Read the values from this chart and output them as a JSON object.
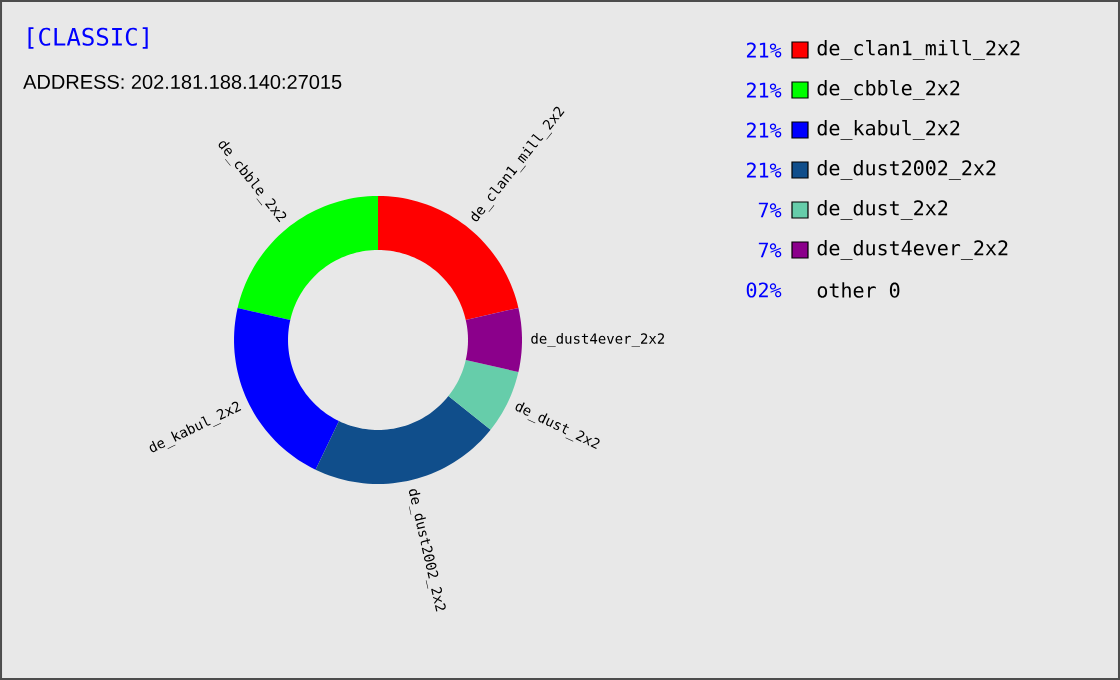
{
  "chart_data": {
    "type": "donut",
    "title": "[CLASSIC]",
    "subtitle": "ADDRESS: 202.181.188.140:27015",
    "categories": [
      "de_clan1_mill_2x2",
      "de_cbble_2x2",
      "de_kabul_2x2",
      "de_dust2002_2x2",
      "de_dust_2x2",
      "de_dust4ever_2x2",
      "other 0"
    ],
    "values": [
      21.43,
      21.43,
      21.43,
      21.43,
      7.14,
      7.14,
      0
    ],
    "annotations": [
      "21%",
      "21%",
      "21%",
      "21%",
      "7%",
      "7%",
      "02%"
    ],
    "colors": [
      "#ff0000",
      "#00ff00",
      "#0000ff",
      "#104e8b",
      "#66cdaa",
      "#8b008b",
      null
    ],
    "legend": "right"
  }
}
